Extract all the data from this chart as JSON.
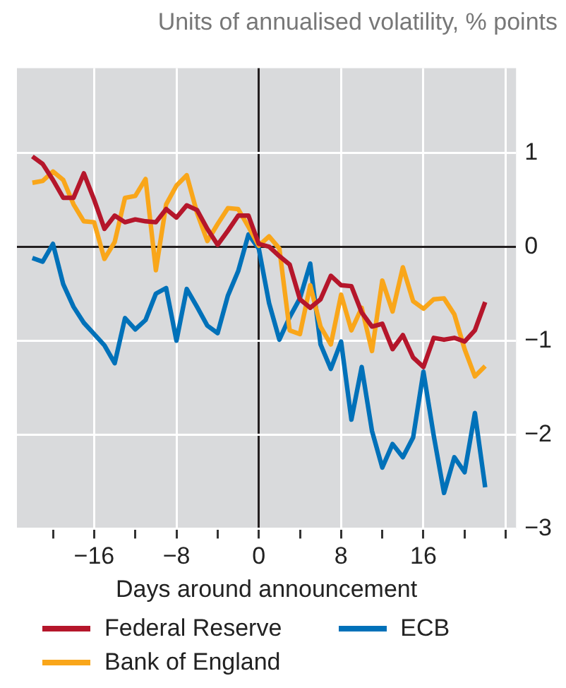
{
  "chart_data": {
    "type": "line",
    "title": "Units of annualised volatility, % points",
    "xlabel": "Days around announcement",
    "x": [
      -22,
      -21,
      -20,
      -19,
      -18,
      -17,
      -16,
      -15,
      -14,
      -13,
      -12,
      -11,
      -10,
      -9,
      -8,
      -7,
      -6,
      -5,
      -4,
      -3,
      -2,
      -1,
      0,
      1,
      2,
      3,
      4,
      5,
      6,
      7,
      8,
      9,
      10,
      11,
      12,
      13,
      14,
      15,
      16,
      17,
      18,
      19,
      20,
      21,
      22
    ],
    "series": [
      {
        "name": "Federal Reserve",
        "color": "#b5162b",
        "values": [
          0.96,
          0.88,
          0.71,
          0.52,
          0.52,
          0.78,
          0.5,
          0.19,
          0.33,
          0.26,
          0.29,
          0.27,
          0.26,
          0.4,
          0.31,
          0.44,
          0.39,
          0.19,
          0.02,
          0.17,
          0.33,
          0.33,
          0.03,
          0,
          -0.1,
          -0.19,
          -0.56,
          -0.65,
          -0.56,
          -0.31,
          -0.41,
          -0.42,
          -0.7,
          -0.85,
          -0.82,
          -1.09,
          -0.94,
          -1.18,
          -1.28,
          -0.97,
          -0.99,
          -0.97,
          -1.01,
          -0.89,
          -0.59
        ]
      },
      {
        "name": "Bank of England",
        "color": "#f9a61a",
        "values": [
          0.68,
          0.7,
          0.8,
          0.71,
          0.45,
          0.27,
          0.26,
          -0.13,
          0.05,
          0.52,
          0.54,
          0.72,
          -0.25,
          0.45,
          0.65,
          0.76,
          0.36,
          0.06,
          0.24,
          0.41,
          0.4,
          0.21,
          0.01,
          0.11,
          -0.02,
          -0.89,
          -0.93,
          -0.41,
          -0.85,
          -1.04,
          -0.51,
          -0.89,
          -0.65,
          -1.11,
          -0.36,
          -0.69,
          -0.22,
          -0.58,
          -0.66,
          -0.56,
          -0.55,
          -0.72,
          -1.09,
          -1.38,
          -1.27
        ]
      },
      {
        "name": "ECB",
        "color": "#0071b9",
        "values": [
          -0.12,
          -0.16,
          0.03,
          -0.4,
          -0.64,
          -0.81,
          -0.93,
          -1.05,
          -1.24,
          -0.76,
          -0.88,
          -0.78,
          -0.5,
          -0.44,
          -1.0,
          -0.45,
          -0.64,
          -0.84,
          -0.92,
          -0.52,
          -0.26,
          0.13,
          -0.02,
          -0.6,
          -0.99,
          -0.75,
          -0.55,
          -0.18,
          -1.04,
          -1.3,
          -1.01,
          -1.84,
          -1.28,
          -1.96,
          -2.35,
          -2.1,
          -2.24,
          -2.03,
          -1.33,
          -2.01,
          -2.62,
          -2.24,
          -2.4,
          -1.77,
          -2.56
        ]
      }
    ],
    "xlim": [
      -23.5,
      25
    ],
    "xticks": [
      {
        "value": -20,
        "label": null
      },
      -16,
      {
        "value": -12,
        "label": null
      },
      -8,
      {
        "value": -4,
        "label": null
      },
      0,
      {
        "value": 4,
        "label": null
      },
      8,
      {
        "value": 12,
        "label": null
      },
      16,
      {
        "value": 20,
        "label": null
      },
      {
        "value": 24,
        "label": null
      }
    ],
    "ylim": [
      -3,
      1.9
    ],
    "yticks": [
      -3,
      -2,
      -1,
      0,
      1
    ],
    "grid": true,
    "legend": "bottom",
    "marker": "none",
    "line_style": "solid"
  }
}
